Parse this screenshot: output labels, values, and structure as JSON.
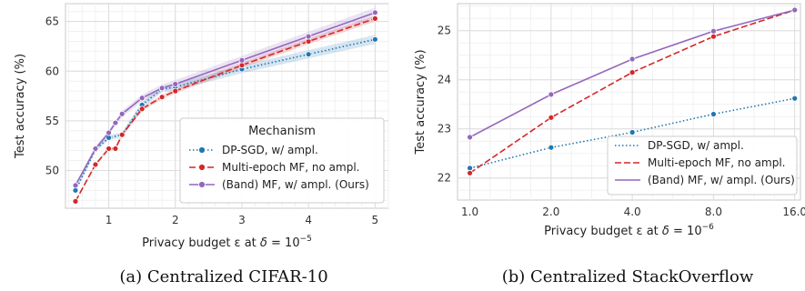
{
  "chart_data": [
    {
      "type": "line",
      "caption": "(a) Centralized CIFAR-10",
      "xlabel_prefix": "Privacy budget ε at ",
      "xlabel_delta": "δ",
      "xlabel_eq": " = ",
      "xlabel_base": "10",
      "xlabel_exp": "−5",
      "ylabel": "Test accuracy (%)",
      "xlim": [
        0.35,
        5.2
      ],
      "ylim": [
        46.2,
        66.8
      ],
      "xticks": [
        1,
        2,
        3,
        4,
        5
      ],
      "yticks": [
        50,
        55,
        60,
        65
      ],
      "xminor": 0.2,
      "yminor": 1,
      "legend": {
        "title": "Mechanism",
        "position": "lower right"
      },
      "series": [
        {
          "name": "DP-SGD, w/ ampl.",
          "color": "#1f77b4",
          "style": "dotted",
          "x": [
            0.5,
            0.8,
            1.0,
            1.2,
            1.5,
            1.8,
            2.0,
            3.0,
            4.0,
            5.0
          ],
          "y": [
            48.0,
            52.1,
            53.3,
            53.6,
            56.6,
            58.2,
            58.4,
            60.2,
            61.7,
            63.2
          ],
          "band": 0.45
        },
        {
          "name": "Multi-epoch MF, no ampl.",
          "color": "#d62728",
          "style": "dashed",
          "x": [
            0.5,
            0.8,
            1.0,
            1.1,
            1.2,
            1.5,
            1.8,
            2.0,
            3.0,
            4.0,
            5.0
          ],
          "y": [
            46.9,
            50.6,
            52.2,
            52.2,
            53.6,
            56.2,
            57.4,
            58.0,
            60.6,
            63.0,
            65.3
          ],
          "band": 0.3
        },
        {
          "name": "(Band) MF, w/ ampl. (Ours)",
          "color": "#9467bd",
          "style": "solid",
          "x": [
            0.5,
            0.8,
            1.0,
            1.1,
            1.2,
            1.5,
            1.8,
            2.0,
            3.0,
            4.0,
            5.0
          ],
          "y": [
            48.5,
            52.2,
            53.8,
            54.8,
            55.7,
            57.3,
            58.3,
            58.7,
            61.1,
            63.5,
            65.9
          ],
          "band": 0.5
        }
      ]
    },
    {
      "type": "line",
      "caption": "(b) Centralized StackOverflow",
      "xlabel_prefix": "Privacy budget ε at ",
      "xlabel_delta": "δ",
      "xlabel_eq": " = ",
      "xlabel_base": "10",
      "xlabel_exp": "−6",
      "ylabel": "Test accuracy (%)",
      "x_scale": "log2",
      "xlim": [
        0.9,
        16.8
      ],
      "ylim": [
        21.55,
        25.55
      ],
      "xticks": [
        1,
        2,
        4,
        8,
        16
      ],
      "xticklabels": [
        "1.0",
        "2.0",
        "4.0",
        "8.0",
        "16.0"
      ],
      "yticks": [
        22,
        23,
        24,
        25
      ],
      "xminor_per_major": 4,
      "yminor": 0.25,
      "legend": {
        "title": "",
        "position": "lower right"
      },
      "series": [
        {
          "name": "DP-SGD, w/ ampl.",
          "color": "#1f77b4",
          "style": "dotted",
          "x": [
            1,
            2,
            4,
            8,
            16
          ],
          "y": [
            22.2,
            22.62,
            22.93,
            23.3,
            23.62
          ]
        },
        {
          "name": "Multi-epoch MF, no ampl.",
          "color": "#d62728",
          "style": "dashed",
          "x": [
            1,
            2,
            4,
            8,
            16
          ],
          "y": [
            22.1,
            23.23,
            24.15,
            24.88,
            25.42
          ]
        },
        {
          "name": "(Band) MF, w/ ampl. (Ours)",
          "color": "#9467bd",
          "style": "solid",
          "x": [
            1,
            2,
            4,
            8,
            16
          ],
          "y": [
            22.83,
            23.7,
            24.42,
            24.99,
            25.42
          ]
        }
      ]
    }
  ]
}
